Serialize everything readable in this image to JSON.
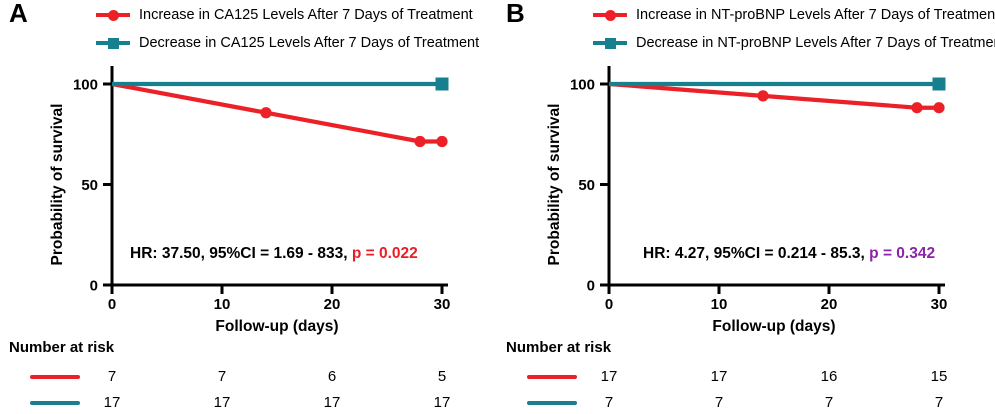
{
  "figure": {
    "background": "#ffffff",
    "description": "Kaplan-Meier survival curves, two panels"
  },
  "colors": {
    "increase_series": "#ec2027",
    "decrease_series": "#16808e",
    "axis": "#000000",
    "p_value_panel_a": "#ed1c24",
    "p_value_panel_b": "#8b24a8"
  },
  "chart_data": [
    {
      "panel": "A",
      "type": "line",
      "xlabel": "Follow-up (days)",
      "ylabel": "Probability of survival",
      "xlim": [
        0,
        30
      ],
      "ylim": [
        0,
        100
      ],
      "xticks": [
        0,
        10,
        20,
        30
      ],
      "yticks": [
        0,
        50,
        100
      ],
      "legend_position": "top",
      "grid": false,
      "series": [
        {
          "name": "Increase in CA125 Levels After 7 Days of Treatment",
          "color": "#ec2027",
          "marker": "circle",
          "x": [
            0,
            14,
            28,
            30
          ],
          "y": [
            100,
            85.7,
            71.4,
            71.4
          ],
          "marker_x": [
            14,
            28,
            30
          ]
        },
        {
          "name": "Decrease in CA125 Levels After 7 Days of Treatment",
          "color": "#16808e",
          "marker": "square",
          "x": [
            0,
            30
          ],
          "y": [
            100,
            100
          ],
          "marker_x": [
            30
          ]
        }
      ],
      "annotation": {
        "text_prefix": "HR: 37.50, 95%CI = 1.69 - 833, ",
        "p_text": "p = 0.022",
        "p_color": "#ed1c24"
      },
      "number_at_risk": {
        "label": "Number at risk",
        "timepoints": [
          0,
          10,
          20,
          30
        ],
        "rows": [
          {
            "series": "Increase in CA125",
            "color": "#ec2027",
            "values": [
              "7",
              "7",
              "6",
              "5"
            ]
          },
          {
            "series": "Decrease in CA125",
            "color": "#16808e",
            "values": [
              "17",
              "17",
              "17",
              "17"
            ]
          }
        ]
      }
    },
    {
      "panel": "B",
      "type": "line",
      "xlabel": "Follow-up (days)",
      "ylabel": "Probability of survival",
      "xlim": [
        0,
        30
      ],
      "ylim": [
        0,
        100
      ],
      "xticks": [
        0,
        10,
        20,
        30
      ],
      "yticks": [
        0,
        50,
        100
      ],
      "legend_position": "top",
      "grid": false,
      "series": [
        {
          "name": "Increase in NT-proBNP Levels After 7 Days of Treatment",
          "color": "#ec2027",
          "marker": "circle",
          "x": [
            0,
            14,
            28,
            30
          ],
          "y": [
            100,
            94.1,
            88.2,
            88.2
          ],
          "marker_x": [
            14,
            28,
            30
          ]
        },
        {
          "name": "Decrease in NT-proBNP Levels After 7 Days of Treatment",
          "color": "#16808e",
          "marker": "square",
          "x": [
            0,
            30
          ],
          "y": [
            100,
            100
          ],
          "marker_x": [
            30
          ]
        }
      ],
      "annotation": {
        "text_prefix": "HR: 4.27, 95%CI = 0.214 - 85.3, ",
        "p_text": "p = 0.342",
        "p_color": "#8b24a8"
      },
      "number_at_risk": {
        "label": "Number at risk",
        "timepoints": [
          0,
          10,
          20,
          30
        ],
        "rows": [
          {
            "series": "Increase in NT-proBNP",
            "color": "#ec2027",
            "values": [
              "17",
              "17",
              "16",
              "15"
            ]
          },
          {
            "series": "Decrease in NT-proBNP",
            "color": "#16808e",
            "values": [
              "7",
              "7",
              "7",
              "7"
            ]
          }
        ]
      }
    }
  ]
}
